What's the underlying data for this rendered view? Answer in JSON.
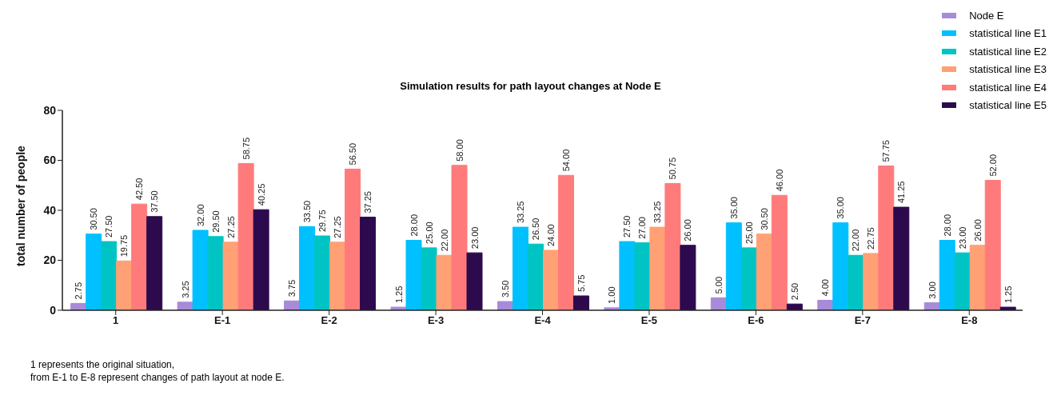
{
  "chart_data": {
    "type": "bar",
    "title": "Simulation results for path layout changes at Node E",
    "ylabel": "total number of people",
    "categories": [
      "1",
      "E-1",
      "E-2",
      "E-3",
      "E-4",
      "E-5",
      "E-6",
      "E-7",
      "E-8"
    ],
    "series": [
      {
        "name": "Node E",
        "color": "#a78bd8",
        "values": [
          2.75,
          3.25,
          3.75,
          1.25,
          3.5,
          1.0,
          5.0,
          4.0,
          3.0
        ],
        "value_labels": [
          "2.75",
          "3.25",
          "3.75",
          "1.25",
          "3.50",
          "1.00",
          "5.00",
          "4.00",
          "3.00"
        ]
      },
      {
        "name": "statistical line E1",
        "color": "#00c0ff",
        "values": [
          30.5,
          32.0,
          33.5,
          28.0,
          33.25,
          27.5,
          35.0,
          35.0,
          28.0
        ],
        "value_labels": [
          "30.50",
          "32.00",
          "33.50",
          "28.00",
          "33.25",
          "27.50",
          "35.00",
          "35.00",
          "28.00"
        ]
      },
      {
        "name": "statistical line E2",
        "color": "#00c4c4",
        "values": [
          27.5,
          29.5,
          29.75,
          25.0,
          26.5,
          27.0,
          25.0,
          22.0,
          23.0
        ],
        "value_labels": [
          "27.50",
          "29.50",
          "29.75",
          "25.00",
          "26.50",
          "27.00",
          "25.00",
          "22.00",
          "23.00"
        ]
      },
      {
        "name": "statistical line E3",
        "color": "#ffa075",
        "values": [
          19.75,
          27.25,
          27.25,
          22.0,
          24.0,
          33.25,
          30.5,
          22.75,
          26.0
        ],
        "value_labels": [
          "19.75",
          "27.25",
          "27.25",
          "22.00",
          "24.00",
          "33.25",
          "30.50",
          "22.75",
          "26.00"
        ]
      },
      {
        "name": "statistical line E4",
        "color": "#ff7b7b",
        "values": [
          42.5,
          58.75,
          56.5,
          58.0,
          54.0,
          50.75,
          46.0,
          57.75,
          52.0
        ],
        "value_labels": [
          "42.50",
          "58.75",
          "56.50",
          "58.00",
          "54.00",
          "50.75",
          "46.00",
          "57.75",
          "52.00"
        ]
      },
      {
        "name": "statistical line E5",
        "color": "#2d0a4e",
        "values": [
          37.5,
          40.25,
          37.25,
          23.0,
          5.75,
          26.0,
          2.5,
          41.25,
          1.25
        ],
        "value_labels": [
          "37.50",
          "40.25",
          "37.25",
          "23.00",
          "5.75",
          "26.00",
          "2.50",
          "41.25",
          "1.25"
        ]
      }
    ],
    "ylim": [
      0,
      80
    ],
    "yticks": [
      0,
      20,
      40,
      60,
      80
    ],
    "grid": false,
    "legend": "top right",
    "annotations": [
      "1 represents the original situation,",
      "from E-1 to E-8 represent changes of path layout at node E."
    ]
  }
}
